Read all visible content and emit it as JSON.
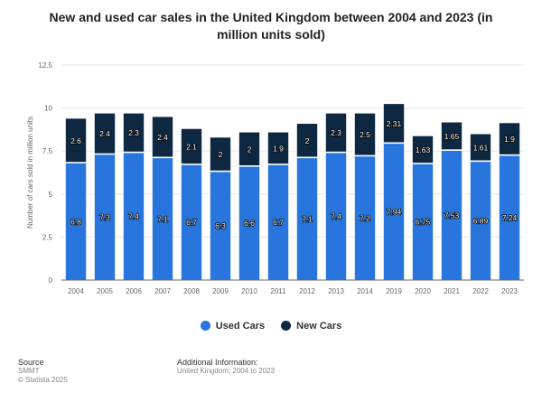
{
  "chart_data": {
    "type": "bar",
    "stacked": true,
    "title": "New and used car sales in the United Kingdom between 2004 and 2023 (in million units sold)",
    "ylabel": "Number of cars sold in million units",
    "xlabel": "",
    "ylim": [
      0,
      12.5
    ],
    "yticks": [
      "0",
      "2.5",
      "5",
      "7.5",
      "10",
      "12.5"
    ],
    "grid": true,
    "legend": "bottom",
    "categories": [
      "2004",
      "2005",
      "2006",
      "2007",
      "2008",
      "2009",
      "2010",
      "2011",
      "2012",
      "2013",
      "2014",
      "2019",
      "2020",
      "2021",
      "2022",
      "2023"
    ],
    "series": [
      {
        "name": "Used Cars",
        "color": "#2876dd",
        "values": [
          6.8,
          7.3,
          7.4,
          7.1,
          6.7,
          6.3,
          6.6,
          6.7,
          7.1,
          7.4,
          7.2,
          7.94,
          6.75,
          7.53,
          6.89,
          7.24
        ]
      },
      {
        "name": "New Cars",
        "color": "#0f2841",
        "values": [
          2.6,
          2.4,
          2.3,
          2.4,
          2.1,
          2,
          2,
          1.9,
          2,
          2.3,
          2.5,
          2.31,
          1.63,
          1.65,
          1.61,
          1.9
        ]
      }
    ]
  },
  "footer": {
    "source_label": "Source",
    "source": "SMMT",
    "copyright": "© Statista 2025",
    "info_label": "Additional Information:",
    "info": "United Kingdom; 2004 to 2023"
  }
}
